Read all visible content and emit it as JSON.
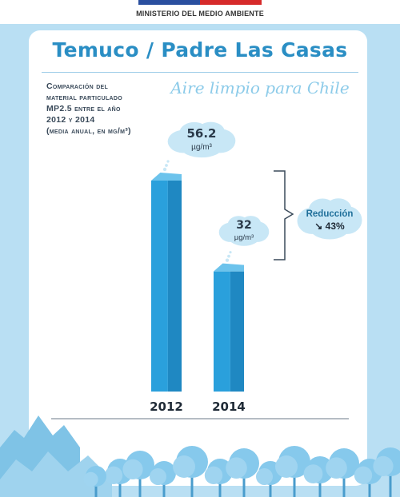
{
  "header": {
    "ministry": "MINISTERIO DEL MEDIO AMBIENTE",
    "flag_colors": [
      "#2a4f9f",
      "#d62a2a"
    ]
  },
  "title": "Temuco / Padre Las Casas",
  "slogan": "Aire limpio para Chile",
  "description": [
    "Comparación del",
    "material particulado",
    "MP2.5 entre el año",
    "2012 y 2014",
    "(media anual, en µg/m³)"
  ],
  "colors": {
    "accent": "#2a8ec4",
    "bar": "#2aa0dc",
    "bubble": "#c8e7f6",
    "background": "#b9dff3"
  },
  "chart_data": {
    "type": "bar",
    "title": "Temuco / Padre Las Casas",
    "categories": [
      "2012",
      "2014"
    ],
    "values": [
      56.2,
      32
    ],
    "value_labels": [
      "56.2",
      "32"
    ],
    "unit_label": "µg/m³",
    "ylim": [
      0,
      60
    ],
    "grid": false,
    "annotation": {
      "label": "Reducción",
      "value": "↘ 43%"
    }
  }
}
